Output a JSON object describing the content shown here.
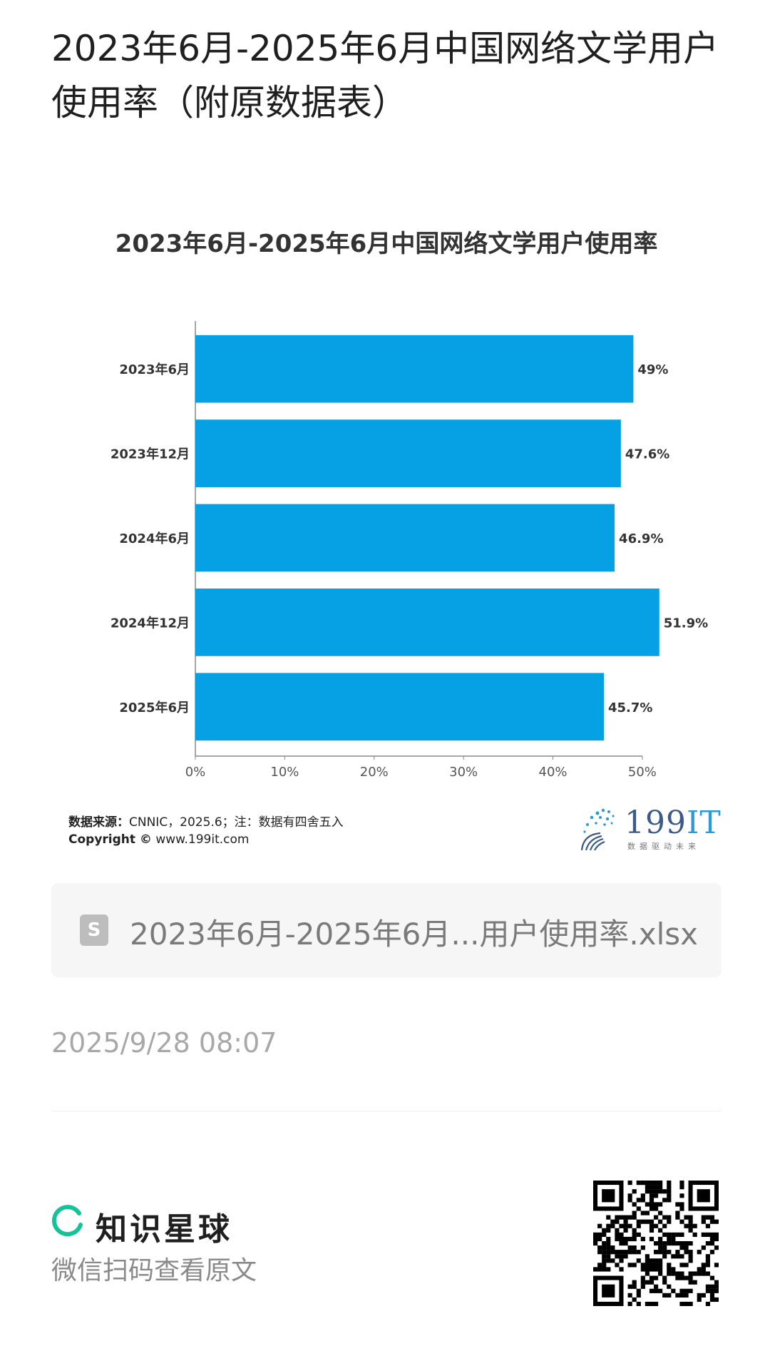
{
  "page": {
    "title": "2023年6月-2025年6月中国网络文学用户使用率（附原数据表）"
  },
  "chart_data": {
    "type": "bar",
    "orientation": "horizontal",
    "title": "2023年6月-2025年6月中国网络文学用户使用率",
    "categories": [
      "2023年6月",
      "2023年12月",
      "2024年6月",
      "2024年12月",
      "2025年6月"
    ],
    "values": [
      49,
      47.6,
      46.9,
      51.9,
      45.7
    ],
    "value_labels": [
      "49%",
      "47.6%",
      "46.9%",
      "51.9%",
      "45.7%"
    ],
    "x_ticks": [
      "0%",
      "10%",
      "20%",
      "30%",
      "40%",
      "50%"
    ],
    "xlim": [
      0,
      52
    ],
    "bar_color": "#06a0e4",
    "grid": false
  },
  "footer": {
    "source_label": "数据来源：",
    "source_text": "CNNIC，2025.6；注：数据有四舍五入",
    "copyright_label": "Copyright ©",
    "copyright_text": "www.199it.com",
    "logo_text_num": "199",
    "logo_text_it": "IT",
    "logo_tagline": "数据驱动未来"
  },
  "attachment": {
    "icon": "spreadsheet-file-icon",
    "icon_letter": "S",
    "filename": "2023年6月-2025年6月...用户使用率.xlsx"
  },
  "meta": {
    "timestamp": "2025/9/28 08:07"
  },
  "brand": {
    "name": "知识星球",
    "scan_hint": "微信扫码查看原文",
    "accent": "#15c39a"
  }
}
